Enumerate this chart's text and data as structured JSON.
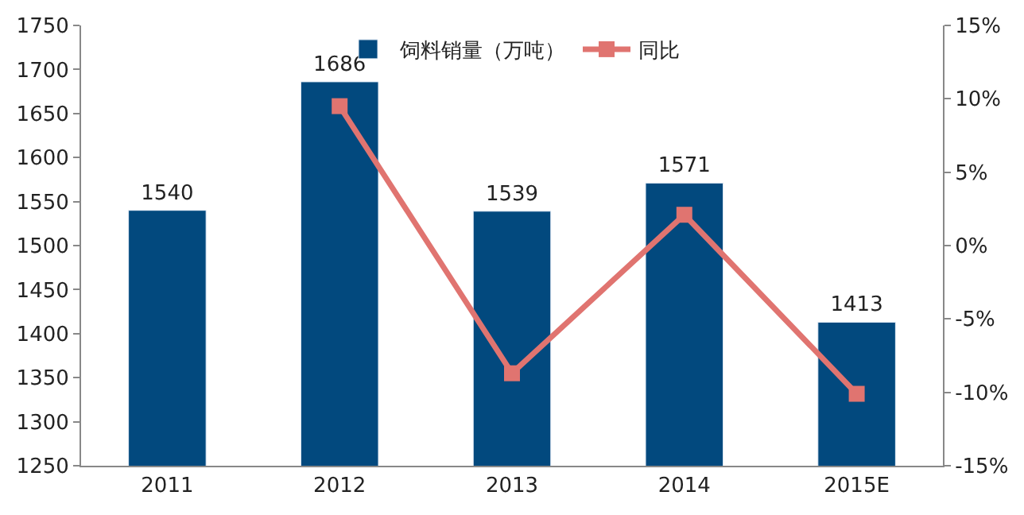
{
  "chart_data": {
    "type": "bar",
    "categories": [
      "2011",
      "2012",
      "2013",
      "2014",
      "2015E"
    ],
    "series": [
      {
        "name": "饲料销量（万吨）",
        "color": "#02497e",
        "values": [
          1540,
          1686,
          1539,
          1571,
          1413
        ],
        "value_labels": [
          "1540",
          "1686",
          "1539",
          "1571",
          "1413"
        ]
      },
      {
        "name": "同比",
        "type": "line",
        "axis": "y2",
        "color": "#e07470",
        "values": [
          null,
          9.5,
          -8.7,
          2.1,
          -10.1
        ]
      }
    ],
    "ylim": [
      1250,
      1750
    ],
    "yticks": [
      1250,
      1300,
      1350,
      1400,
      1450,
      1500,
      1550,
      1600,
      1650,
      1700,
      1750
    ],
    "y2lim": [
      -15,
      15
    ],
    "y2ticks": [
      {
        "value": -15,
        "label": "-15%"
      },
      {
        "value": -10,
        "label": "-10%"
      },
      {
        "value": -5,
        "label": "-5%"
      },
      {
        "value": 0,
        "label": "0%"
      },
      {
        "value": 5,
        "label": "5%"
      },
      {
        "value": 10,
        "label": "10%"
      },
      {
        "value": 15,
        "label": "15%"
      }
    ],
    "legend": "top",
    "marker": "square",
    "line_style": "solid"
  }
}
